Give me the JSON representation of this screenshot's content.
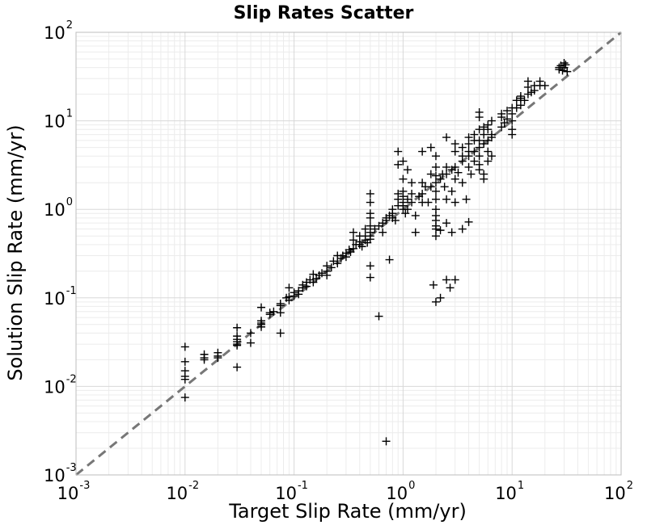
{
  "chart_data": {
    "type": "scatter",
    "title": "Slip Rates Scatter",
    "xlabel": "Target Slip Rate (mm/yr)",
    "ylabel": "Solution Slip Rate (mm/yr)",
    "xscale": "log",
    "yscale": "log",
    "xlim": [
      0.001,
      100
    ],
    "ylim": [
      0.001,
      100
    ],
    "xticks": [
      {
        "base": "10",
        "exp": "-3",
        "value": 0.001
      },
      {
        "base": "10",
        "exp": "-2",
        "value": 0.01
      },
      {
        "base": "10",
        "exp": "-1",
        "value": 0.1
      },
      {
        "base": "10",
        "exp": "0",
        "value": 1
      },
      {
        "base": "10",
        "exp": "1",
        "value": 10
      },
      {
        "base": "10",
        "exp": "2",
        "value": 100
      }
    ],
    "yticks": [
      {
        "base": "10",
        "exp": "-3",
        "value": 0.001
      },
      {
        "base": "10",
        "exp": "-2",
        "value": 0.01
      },
      {
        "base": "10",
        "exp": "-1",
        "value": 0.1
      },
      {
        "base": "10",
        "exp": "0",
        "value": 1
      },
      {
        "base": "10",
        "exp": "1",
        "value": 10
      },
      {
        "base": "10",
        "exp": "2",
        "value": 100
      }
    ],
    "grid": true,
    "marker": "+",
    "marker_color": "#000000",
    "reference_line": {
      "style": "dashed",
      "color": "#777777",
      "points": [
        [
          0.001,
          0.001
        ],
        [
          100,
          100
        ]
      ]
    },
    "points": [
      [
        0.01,
        0.028
      ],
      [
        0.01,
        0.019
      ],
      [
        0.01,
        0.015
      ],
      [
        0.01,
        0.013
      ],
      [
        0.01,
        0.012
      ],
      [
        0.01,
        0.0075
      ],
      [
        0.015,
        0.023
      ],
      [
        0.015,
        0.021
      ],
      [
        0.015,
        0.02
      ],
      [
        0.02,
        0.024
      ],
      [
        0.02,
        0.022
      ],
      [
        0.02,
        0.021
      ],
      [
        0.03,
        0.046
      ],
      [
        0.03,
        0.037
      ],
      [
        0.03,
        0.034
      ],
      [
        0.03,
        0.032
      ],
      [
        0.03,
        0.03
      ],
      [
        0.03,
        0.029
      ],
      [
        0.03,
        0.0165
      ],
      [
        0.04,
        0.04
      ],
      [
        0.04,
        0.031
      ],
      [
        0.05,
        0.078
      ],
      [
        0.05,
        0.055
      ],
      [
        0.05,
        0.052
      ],
      [
        0.05,
        0.05
      ],
      [
        0.05,
        0.047
      ],
      [
        0.06,
        0.065
      ],
      [
        0.06,
        0.068
      ],
      [
        0.065,
        0.07
      ],
      [
        0.075,
        0.086
      ],
      [
        0.075,
        0.082
      ],
      [
        0.075,
        0.068
      ],
      [
        0.075,
        0.04
      ],
      [
        0.085,
        0.1
      ],
      [
        0.09,
        0.094
      ],
      [
        0.09,
        0.103
      ],
      [
        0.09,
        0.13
      ],
      [
        0.1,
        0.115
      ],
      [
        0.1,
        0.105
      ],
      [
        0.11,
        0.12
      ],
      [
        0.11,
        0.11
      ],
      [
        0.12,
        0.13
      ],
      [
        0.12,
        0.14
      ],
      [
        0.13,
        0.135
      ],
      [
        0.13,
        0.15
      ],
      [
        0.14,
        0.16
      ],
      [
        0.15,
        0.15
      ],
      [
        0.15,
        0.185
      ],
      [
        0.16,
        0.165
      ],
      [
        0.17,
        0.18
      ],
      [
        0.18,
        0.19
      ],
      [
        0.2,
        0.2
      ],
      [
        0.2,
        0.23
      ],
      [
        0.2,
        0.18
      ],
      [
        0.22,
        0.22
      ],
      [
        0.23,
        0.26
      ],
      [
        0.25,
        0.245
      ],
      [
        0.25,
        0.3
      ],
      [
        0.27,
        0.28
      ],
      [
        0.28,
        0.3
      ],
      [
        0.3,
        0.29
      ],
      [
        0.3,
        0.32
      ],
      [
        0.32,
        0.35
      ],
      [
        0.33,
        0.33
      ],
      [
        0.35,
        0.36
      ],
      [
        0.35,
        0.45
      ],
      [
        0.35,
        0.55
      ],
      [
        0.37,
        0.4
      ],
      [
        0.4,
        0.4
      ],
      [
        0.4,
        0.43
      ],
      [
        0.4,
        0.5
      ],
      [
        0.42,
        0.38
      ],
      [
        0.45,
        0.45
      ],
      [
        0.45,
        0.5
      ],
      [
        0.45,
        0.6
      ],
      [
        0.47,
        0.42
      ],
      [
        0.5,
        0.5
      ],
      [
        0.5,
        0.55
      ],
      [
        0.5,
        0.46
      ],
      [
        0.5,
        0.65
      ],
      [
        0.5,
        0.8
      ],
      [
        0.5,
        0.9
      ],
      [
        0.5,
        0.23
      ],
      [
        0.5,
        0.17
      ],
      [
        0.5,
        1.2
      ],
      [
        0.5,
        1.5
      ],
      [
        0.55,
        0.6
      ],
      [
        0.6,
        0.65
      ],
      [
        0.6,
        0.062
      ],
      [
        0.65,
        0.7
      ],
      [
        0.65,
        0.55
      ],
      [
        0.7,
        0.75
      ],
      [
        0.7,
        0.8
      ],
      [
        0.7,
        0.0024
      ],
      [
        0.75,
        0.85
      ],
      [
        0.75,
        0.27
      ],
      [
        0.8,
        0.8
      ],
      [
        0.8,
        0.9
      ],
      [
        0.8,
        1.0
      ],
      [
        0.85,
        0.75
      ],
      [
        0.9,
        1.1
      ],
      [
        0.9,
        1.3
      ],
      [
        0.9,
        1.5
      ],
      [
        0.9,
        3.2
      ],
      [
        0.9,
        4.5
      ],
      [
        1.0,
        1.0
      ],
      [
        1.0,
        1.2
      ],
      [
        1.0,
        1.4
      ],
      [
        1.0,
        1.6
      ],
      [
        1.0,
        2.2
      ],
      [
        1.0,
        3.5
      ],
      [
        1.0,
        1.1
      ],
      [
        1.05,
        0.9
      ],
      [
        1.1,
        1.3
      ],
      [
        1.1,
        1.0
      ],
      [
        1.1,
        2.8
      ],
      [
        1.2,
        1.2
      ],
      [
        1.2,
        1.5
      ],
      [
        1.2,
        2.0
      ],
      [
        1.3,
        0.85
      ],
      [
        1.3,
        0.55
      ],
      [
        1.4,
        1.4
      ],
      [
        1.5,
        1.2
      ],
      [
        1.5,
        1.5
      ],
      [
        1.5,
        2.0
      ],
      [
        1.5,
        4.5
      ],
      [
        1.6,
        1.8
      ],
      [
        1.7,
        1.2
      ],
      [
        1.8,
        1.8
      ],
      [
        1.8,
        2.5
      ],
      [
        1.8,
        5.0
      ],
      [
        1.9,
        0.14
      ],
      [
        2.0,
        0.09
      ],
      [
        2.0,
        1.0
      ],
      [
        2.0,
        1.3
      ],
      [
        2.0,
        1.6
      ],
      [
        2.0,
        2.0
      ],
      [
        2.0,
        2.4
      ],
      [
        2.0,
        3.0
      ],
      [
        2.0,
        0.5
      ],
      [
        2.0,
        0.6
      ],
      [
        2.0,
        0.65
      ],
      [
        2.0,
        0.75
      ],
      [
        2.0,
        0.85
      ],
      [
        2.0,
        4.0
      ],
      [
        2.2,
        2.2
      ],
      [
        2.2,
        0.1
      ],
      [
        2.2,
        0.58
      ],
      [
        2.3,
        2.5
      ],
      [
        2.4,
        1.8
      ],
      [
        2.5,
        2.5
      ],
      [
        2.5,
        0.16
      ],
      [
        2.5,
        0.7
      ],
      [
        2.5,
        1.3
      ],
      [
        2.5,
        3.0
      ],
      [
        2.5,
        6.5
      ],
      [
        2.7,
        0.13
      ],
      [
        2.8,
        2.8
      ],
      [
        2.8,
        1.6
      ],
      [
        2.8,
        0.55
      ],
      [
        3.0,
        3.0
      ],
      [
        3.0,
        0.16
      ],
      [
        3.0,
        2.2
      ],
      [
        3.0,
        4.5
      ],
      [
        3.0,
        5.5
      ],
      [
        3.0,
        1.2
      ],
      [
        3.2,
        2.6
      ],
      [
        3.5,
        3.5
      ],
      [
        3.5,
        4.0
      ],
      [
        3.5,
        5.0
      ],
      [
        3.5,
        0.6
      ],
      [
        3.5,
        2.0
      ],
      [
        3.8,
        1.3
      ],
      [
        4.0,
        4.0
      ],
      [
        4.0,
        4.5
      ],
      [
        4.0,
        5.5
      ],
      [
        4.0,
        6.5
      ],
      [
        4.0,
        3.0
      ],
      [
        4.0,
        0.72
      ],
      [
        4.2,
        2.5
      ],
      [
        4.5,
        4.5
      ],
      [
        4.5,
        3.5
      ],
      [
        4.5,
        6.0
      ],
      [
        4.5,
        7.0
      ],
      [
        5.0,
        5.0
      ],
      [
        5.0,
        6.0
      ],
      [
        5.0,
        4.0
      ],
      [
        5.0,
        8.0
      ],
      [
        5.0,
        2.8
      ],
      [
        5.0,
        3.2
      ],
      [
        5.0,
        12.5
      ],
      [
        5.0,
        11.0
      ],
      [
        5.5,
        5.5
      ],
      [
        5.5,
        7.0
      ],
      [
        5.5,
        8.5
      ],
      [
        5.5,
        2.5
      ],
      [
        5.5,
        2.2
      ],
      [
        6.0,
        6.0
      ],
      [
        6.0,
        9.0
      ],
      [
        6.0,
        8.0
      ],
      [
        6.0,
        4.5
      ],
      [
        6.0,
        3.5
      ],
      [
        6.5,
        7.0
      ],
      [
        6.5,
        6.5
      ],
      [
        6.5,
        10.0
      ],
      [
        6.5,
        4.0
      ],
      [
        8.0,
        11.0
      ],
      [
        8.0,
        8.5
      ],
      [
        8.0,
        12.0
      ],
      [
        8.5,
        9.5
      ],
      [
        9.0,
        10.5
      ],
      [
        9.0,
        13.0
      ],
      [
        10.0,
        10.0
      ],
      [
        10.0,
        12.0
      ],
      [
        10.0,
        14.0
      ],
      [
        10.0,
        7.0
      ],
      [
        10.0,
        8.0
      ],
      [
        11.0,
        14.0
      ],
      [
        11.0,
        17.0
      ],
      [
        12.0,
        18.0
      ],
      [
        12.0,
        15.0
      ],
      [
        12.0,
        19.0
      ],
      [
        13.0,
        17.0
      ],
      [
        14.0,
        20.0
      ],
      [
        14.0,
        24.0
      ],
      [
        14.0,
        28.0
      ],
      [
        15.0,
        21.0
      ],
      [
        16.0,
        22.0
      ],
      [
        16.0,
        25.0
      ],
      [
        18.0,
        28.0
      ],
      [
        18.0,
        25.0
      ],
      [
        20.0,
        25.0
      ],
      [
        27.0,
        38.0
      ],
      [
        27.0,
        40.0
      ],
      [
        28.0,
        42.0
      ],
      [
        29.0,
        37.0
      ],
      [
        30.0,
        40.0
      ],
      [
        30.0,
        45.0
      ],
      [
        31.0,
        43.0
      ],
      [
        32.0,
        36.0
      ]
    ]
  }
}
